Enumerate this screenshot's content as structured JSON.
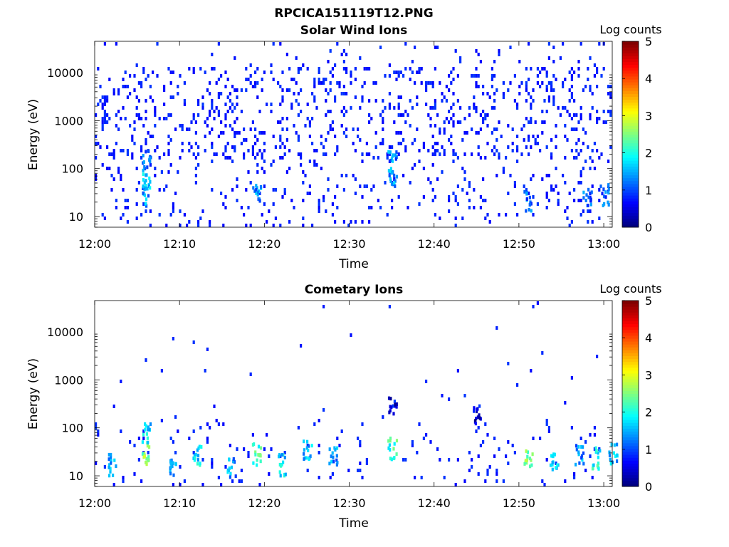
{
  "figure_title": "RPCICA151119T12.PNG",
  "chart_data": [
    {
      "type": "heatmap",
      "title": "Solar Wind Ions",
      "xlabel": "Time",
      "ylabel": "Energy (eV)",
      "x_ticks": [
        "12:00",
        "12:10",
        "12:20",
        "12:30",
        "12:40",
        "12:50",
        "13:00"
      ],
      "x_range": [
        "12:00",
        "13:01"
      ],
      "y_scale": "log",
      "y_ticks": [
        10,
        100,
        1000,
        10000
      ],
      "y_range": [
        6,
        45000
      ],
      "colorbar": {
        "label": "Log counts",
        "range": [
          0,
          5
        ],
        "ticks": [
          0,
          1,
          2,
          3,
          4,
          5
        ],
        "colormap": "jet"
      },
      "hotspots": [
        {
          "t": "12:06",
          "e": 30,
          "logc": 1.8
        },
        {
          "t": "12:06",
          "e": 60,
          "logc": 2.0
        },
        {
          "t": "12:06",
          "e": 150,
          "logc": 1.6
        },
        {
          "t": "12:19",
          "e": 30,
          "logc": 1.8
        },
        {
          "t": "12:35",
          "e": 60,
          "logc": 1.9
        },
        {
          "t": "12:35",
          "e": 150,
          "logc": 1.7
        },
        {
          "t": "12:51",
          "e": 22,
          "logc": 1.6
        },
        {
          "t": "12:58",
          "e": 30,
          "logc": 1.5
        },
        {
          "t": "13:00",
          "e": 30,
          "logc": 1.6
        }
      ]
    },
    {
      "type": "heatmap",
      "title": "Cometary Ions",
      "xlabel": "Time",
      "ylabel": "Energy (eV)",
      "x_ticks": [
        "12:00",
        "12:10",
        "12:20",
        "12:30",
        "12:40",
        "12:50",
        "13:00"
      ],
      "x_range": [
        "12:00",
        "13:01"
      ],
      "y_scale": "log",
      "y_ticks": [
        10,
        100,
        1000,
        10000
      ],
      "y_range": [
        6,
        45000
      ],
      "colorbar": {
        "label": "Log counts",
        "range": [
          0,
          5
        ],
        "ticks": [
          0,
          1,
          2,
          3,
          4,
          5
        ],
        "colormap": "jet"
      },
      "hotspots": [
        {
          "t": "12:02",
          "e": 18,
          "logc": 2.0
        },
        {
          "t": "12:06",
          "e": 30,
          "logc": 3.0
        },
        {
          "t": "12:06",
          "e": 80,
          "logc": 2.2
        },
        {
          "t": "12:09",
          "e": 18,
          "logc": 2.0
        },
        {
          "t": "12:12",
          "e": 30,
          "logc": 2.2
        },
        {
          "t": "12:16",
          "e": 15,
          "logc": 1.8
        },
        {
          "t": "12:19",
          "e": 30,
          "logc": 2.6
        },
        {
          "t": "12:22",
          "e": 18,
          "logc": 2.2
        },
        {
          "t": "12:25",
          "e": 40,
          "logc": 2.0
        },
        {
          "t": "12:28",
          "e": 25,
          "logc": 1.8
        },
        {
          "t": "12:35",
          "e": 40,
          "logc": 2.6
        },
        {
          "t": "12:35",
          "e": 300,
          "logc": 1.0
        },
        {
          "t": "12:45",
          "e": 200,
          "logc": 0.9
        },
        {
          "t": "12:51",
          "e": 22,
          "logc": 3.0
        },
        {
          "t": "12:54",
          "e": 22,
          "logc": 2.0
        },
        {
          "t": "12:57",
          "e": 30,
          "logc": 1.8
        },
        {
          "t": "12:59",
          "e": 25,
          "logc": 2.4
        },
        {
          "t": "13:01",
          "e": 30,
          "logc": 2.0
        }
      ]
    }
  ]
}
